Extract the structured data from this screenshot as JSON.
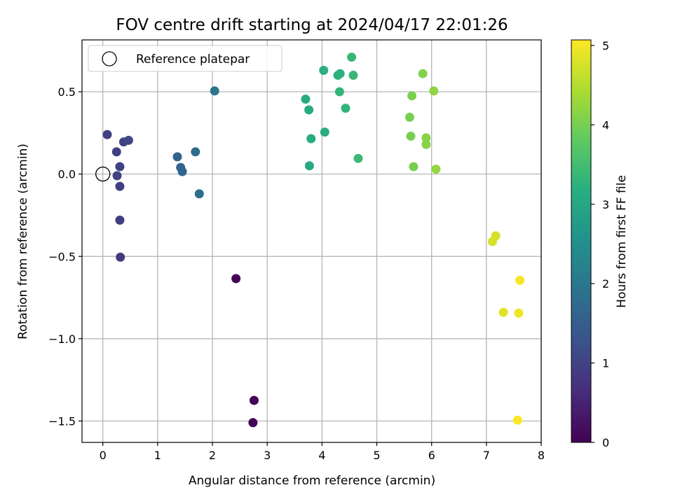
{
  "chart_data": {
    "type": "scatter",
    "title": "FOV centre drift starting at 2024/04/17 22:01:26",
    "xlabel": "Angular distance from reference (arcmin)",
    "ylabel": "Rotation from reference (arcmin)",
    "xlim": [
      -0.38,
      8.0
    ],
    "ylim": [
      -1.63,
      0.815
    ],
    "x_ticks": [
      0,
      1,
      2,
      3,
      4,
      5,
      6,
      7,
      8
    ],
    "y_ticks": [
      -1.5,
      -1.0,
      -0.5,
      0.0,
      0.5
    ],
    "x_tick_labels": [
      "0",
      "1",
      "2",
      "3",
      "4",
      "5",
      "6",
      "7",
      "8"
    ],
    "y_tick_labels": [
      "−1.5",
      "−1.0",
      "−0.5",
      "0.0",
      "0.5"
    ],
    "grid": true,
    "legend": {
      "placement": "top-left",
      "entries": [
        {
          "label": "Reference platepar",
          "marker": "open-circle"
        }
      ]
    },
    "reference_point": {
      "x": 0.0,
      "y": 0.0
    },
    "colorbar": {
      "label": "Hours from first FF file",
      "colormap": "viridis",
      "range": [
        0,
        5.07
      ],
      "ticks": [
        0,
        1,
        2,
        3,
        4,
        5
      ],
      "tick_labels": [
        "0",
        "1",
        "2",
        "3",
        "4",
        "5"
      ]
    },
    "points": [
      {
        "x": 2.43,
        "y": -0.635,
        "c": 0.05
      },
      {
        "x": 2.76,
        "y": -1.375,
        "c": 0.05
      },
      {
        "x": 2.74,
        "y": -1.51,
        "c": 0.03
      },
      {
        "x": 0.08,
        "y": 0.24,
        "c": 0.95
      },
      {
        "x": 0.25,
        "y": 0.135,
        "c": 0.95
      },
      {
        "x": 0.38,
        "y": 0.195,
        "c": 1.0
      },
      {
        "x": 0.47,
        "y": 0.205,
        "c": 1.05
      },
      {
        "x": 0.31,
        "y": 0.045,
        "c": 1.0
      },
      {
        "x": 0.26,
        "y": -0.01,
        "c": 1.0
      },
      {
        "x": 0.31,
        "y": -0.075,
        "c": 0.95
      },
      {
        "x": 0.31,
        "y": -0.28,
        "c": 0.9
      },
      {
        "x": 0.32,
        "y": -0.505,
        "c": 0.85
      },
      {
        "x": 1.36,
        "y": 0.105,
        "c": 1.6
      },
      {
        "x": 1.42,
        "y": 0.04,
        "c": 1.6
      },
      {
        "x": 1.45,
        "y": 0.015,
        "c": 1.65
      },
      {
        "x": 1.69,
        "y": 0.135,
        "c": 1.75
      },
      {
        "x": 1.76,
        "y": -0.12,
        "c": 1.8
      },
      {
        "x": 2.04,
        "y": 0.505,
        "c": 1.95
      },
      {
        "x": 3.7,
        "y": 0.455,
        "c": 3.1
      },
      {
        "x": 3.76,
        "y": 0.39,
        "c": 3.1
      },
      {
        "x": 3.8,
        "y": 0.215,
        "c": 3.15
      },
      {
        "x": 3.77,
        "y": 0.05,
        "c": 3.05
      },
      {
        "x": 4.03,
        "y": 0.63,
        "c": 3.2
      },
      {
        "x": 4.05,
        "y": 0.255,
        "c": 3.15
      },
      {
        "x": 4.29,
        "y": 0.6,
        "c": 3.25
      },
      {
        "x": 4.33,
        "y": 0.61,
        "c": 3.25
      },
      {
        "x": 4.32,
        "y": 0.5,
        "c": 3.3
      },
      {
        "x": 4.43,
        "y": 0.4,
        "c": 3.3
      },
      {
        "x": 4.54,
        "y": 0.71,
        "c": 3.35
      },
      {
        "x": 4.57,
        "y": 0.6,
        "c": 3.35
      },
      {
        "x": 4.66,
        "y": 0.095,
        "c": 3.4
      },
      {
        "x": 5.6,
        "y": 0.345,
        "c": 4.0
      },
      {
        "x": 5.62,
        "y": 0.23,
        "c": 4.0
      },
      {
        "x": 5.64,
        "y": 0.475,
        "c": 4.05
      },
      {
        "x": 5.67,
        "y": 0.045,
        "c": 4.0
      },
      {
        "x": 5.84,
        "y": 0.61,
        "c": 4.1
      },
      {
        "x": 5.9,
        "y": 0.22,
        "c": 4.15
      },
      {
        "x": 5.9,
        "y": 0.18,
        "c": 4.15
      },
      {
        "x": 6.04,
        "y": 0.505,
        "c": 4.2
      },
      {
        "x": 6.08,
        "y": 0.03,
        "c": 4.25
      },
      {
        "x": 7.11,
        "y": -0.41,
        "c": 4.75
      },
      {
        "x": 7.17,
        "y": -0.375,
        "c": 4.75
      },
      {
        "x": 7.31,
        "y": -0.84,
        "c": 4.85
      },
      {
        "x": 7.59,
        "y": -0.845,
        "c": 4.95
      },
      {
        "x": 7.61,
        "y": -0.645,
        "c": 5.0
      },
      {
        "x": 7.57,
        "y": -1.495,
        "c": 5.05
      }
    ]
  }
}
